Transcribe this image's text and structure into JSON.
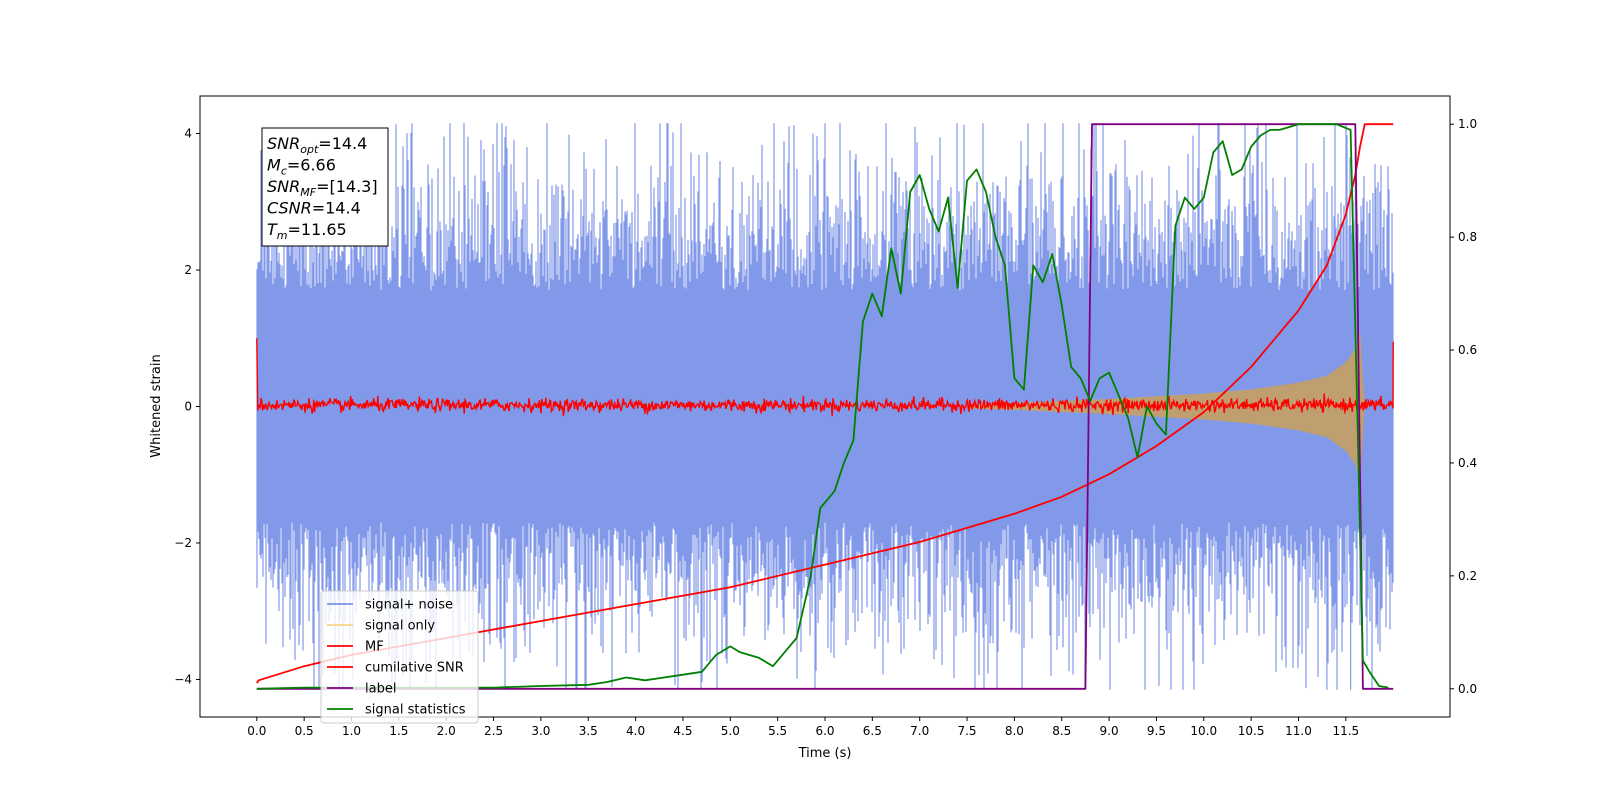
{
  "chart_data": {
    "type": "line",
    "xlabel": "Time (s)",
    "ylabel": "Whitened strain",
    "xlim": [
      -0.6,
      12.6
    ],
    "ylim": [
      -4.55,
      4.55
    ],
    "y2lim": [
      -0.05,
      1.05
    ],
    "x_ticks": [
      "0.0",
      "0.5",
      "1.0",
      "1.5",
      "2.0",
      "2.5",
      "3.0",
      "3.5",
      "4.0",
      "4.5",
      "5.0",
      "5.5",
      "6.0",
      "6.5",
      "7.0",
      "7.5",
      "8.0",
      "8.5",
      "9.0",
      "9.5",
      "10.0",
      "10.5",
      "11.0",
      "11.5"
    ],
    "y_ticks": [
      "4",
      "2",
      "0",
      "−2",
      "−4"
    ],
    "y2_ticks": [
      "1.0",
      "0.8",
      "0.6",
      "0.4",
      "0.2",
      "0.0"
    ],
    "info_box": [
      {
        "base": "SNR",
        "sub": "opt",
        "value": "=14.4"
      },
      {
        "base": "M",
        "sub": "c",
        "value": "=6.66"
      },
      {
        "base": "SNR",
        "sub": "MF",
        "value": "=[14.3]"
      },
      {
        "base": "CSNR",
        "sub": "",
        "value": "=14.4"
      },
      {
        "base": "T",
        "sub": "m",
        "value": "=11.65"
      }
    ],
    "legend": {
      "location": "lower-left",
      "entries": [
        {
          "label": "signal+ noise",
          "color": "#7b93e8"
        },
        {
          "label": "signal only",
          "color": "#f7d48a"
        },
        {
          "label": "MF",
          "color": "#ff0000"
        },
        {
          "label": "cumilative SNR",
          "color": "#ff0000"
        },
        {
          "label": "label",
          "color": "#800080"
        },
        {
          "label": "signal statistics",
          "color": "#008000"
        }
      ]
    },
    "colors": {
      "noise": "#7b93e8",
      "signal_fill": "#bf9f70",
      "mf": "#ff0000",
      "csnr": "#ff0000",
      "label": "#800080",
      "statistics": "#008000"
    },
    "series": [
      {
        "name": "signal+ noise",
        "axis": "left",
        "t_range": [
          0,
          12.0
        ],
        "envelope_low": -2.0,
        "envelope_high": 2.0,
        "peak_max": 4.15,
        "peak_min": -4.15
      },
      {
        "name": "signal only",
        "axis": "left",
        "amplitude_envelope": {
          "t": [
            7.5,
            8.0,
            8.5,
            9.0,
            9.5,
            10.0,
            10.5,
            11.0,
            11.3,
            11.5,
            11.6,
            11.65,
            11.7
          ],
          "amp": [
            0.03,
            0.05,
            0.08,
            0.11,
            0.15,
            0.19,
            0.25,
            0.35,
            0.45,
            0.65,
            0.85,
            1.1,
            0.0
          ]
        }
      },
      {
        "name": "MF",
        "axis": "left",
        "t_range": [
          0,
          12.0
        ],
        "baseline": 0.02,
        "noise_amplitude": 0.08,
        "endpoints": [
          1.0,
          0.95
        ]
      },
      {
        "name": "cumilative SNR",
        "axis": "right",
        "t": [
          0.0,
          0.02,
          0.5,
          1.0,
          2.0,
          3.0,
          4.0,
          5.0,
          6.0,
          7.0,
          8.0,
          8.5,
          9.0,
          9.5,
          10.0,
          10.5,
          11.0,
          11.3,
          11.5,
          11.6,
          11.65,
          11.7,
          12.0
        ],
        "values": [
          0.01,
          0.015,
          0.04,
          0.06,
          0.09,
          0.12,
          0.15,
          0.18,
          0.22,
          0.26,
          0.31,
          0.34,
          0.38,
          0.43,
          0.49,
          0.57,
          0.67,
          0.75,
          0.84,
          0.91,
          0.96,
          1.0,
          1.0
        ]
      },
      {
        "name": "label",
        "axis": "right",
        "t": [
          0.0,
          8.75,
          8.82,
          11.6,
          11.68,
          12.0
        ],
        "values": [
          0.0,
          0.0,
          1.0,
          1.0,
          0.0,
          0.0
        ]
      },
      {
        "name": "signal statistics",
        "axis": "right",
        "t": [
          0.0,
          0.5,
          1.0,
          1.5,
          2.0,
          2.5,
          3.0,
          3.5,
          3.7,
          3.9,
          4.1,
          4.3,
          4.5,
          4.7,
          4.85,
          5.0,
          5.1,
          5.3,
          5.45,
          5.6,
          5.7,
          5.85,
          5.95,
          6.1,
          6.2,
          6.3,
          6.4,
          6.5,
          6.6,
          6.7,
          6.8,
          6.9,
          7.0,
          7.1,
          7.2,
          7.3,
          7.4,
          7.5,
          7.6,
          7.7,
          7.8,
          7.9,
          8.0,
          8.1,
          8.2,
          8.3,
          8.4,
          8.5,
          8.6,
          8.7,
          8.8,
          8.9,
          9.0,
          9.1,
          9.2,
          9.3,
          9.4,
          9.5,
          9.6,
          9.7,
          9.8,
          9.9,
          10.0,
          10.1,
          10.2,
          10.3,
          10.4,
          10.5,
          10.6,
          10.7,
          10.8,
          10.9,
          11.0,
          11.2,
          11.4,
          11.55,
          11.62,
          11.68,
          11.75,
          11.85,
          11.95
        ],
        "values": [
          0.0,
          0.002,
          0.002,
          0.002,
          0.002,
          0.002,
          0.005,
          0.007,
          0.012,
          0.02,
          0.015,
          0.02,
          0.025,
          0.03,
          0.06,
          0.075,
          0.065,
          0.055,
          0.04,
          0.07,
          0.09,
          0.2,
          0.32,
          0.35,
          0.4,
          0.44,
          0.65,
          0.7,
          0.66,
          0.78,
          0.7,
          0.88,
          0.91,
          0.85,
          0.81,
          0.87,
          0.71,
          0.9,
          0.92,
          0.88,
          0.8,
          0.75,
          0.55,
          0.53,
          0.75,
          0.72,
          0.77,
          0.68,
          0.57,
          0.55,
          0.51,
          0.55,
          0.56,
          0.52,
          0.48,
          0.41,
          0.5,
          0.47,
          0.45,
          0.82,
          0.87,
          0.85,
          0.87,
          0.95,
          0.97,
          0.91,
          0.92,
          0.96,
          0.98,
          0.99,
          0.99,
          0.995,
          1.0,
          1.0,
          1.0,
          0.99,
          0.5,
          0.05,
          0.03,
          0.005,
          0.002
        ]
      }
    ]
  }
}
